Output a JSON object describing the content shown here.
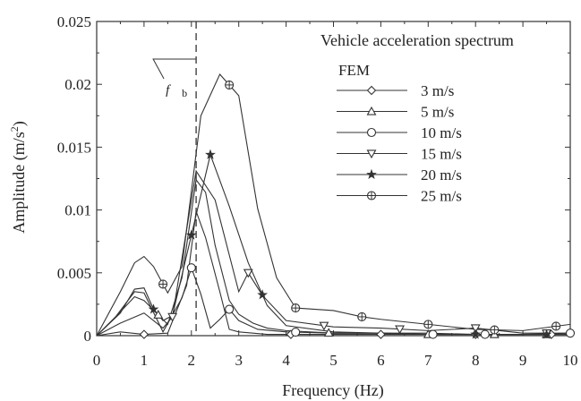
{
  "chart_data": {
    "type": "line",
    "title": "Vehicle acceleration spectrum",
    "xlabel": "Frequency (Hz)",
    "ylabel": "Amplitude (m/s²)",
    "ylabel_base": "Amplitude (m/s",
    "ylabel_sup": "2",
    "ylabel_close": ")",
    "xlim": [
      0,
      10
    ],
    "ylim": [
      0,
      0.025
    ],
    "x_ticks": [
      "0",
      "1",
      "2",
      "3",
      "4",
      "5",
      "6",
      "7",
      "8",
      "9",
      "10"
    ],
    "y_ticks": [
      "0",
      "0.005",
      "0.01",
      "0.015",
      "0.02",
      "0.025"
    ],
    "legend_header": "FEM",
    "legend_position": "top-right",
    "grid": false,
    "annotation": {
      "label": "f",
      "subscript": "b",
      "x": 2.1
    },
    "series": [
      {
        "name": "3 m/s",
        "marker": "diamond",
        "x": [
          0,
          0.5,
          1.0,
          1.5,
          1.9,
          2.1,
          2.3,
          2.6,
          2.8,
          3.0,
          3.3,
          3.6,
          4.0,
          5.0,
          6.0,
          7.0,
          8.0,
          9.0,
          10.0
        ],
        "y": [
          0,
          0.0003,
          0.0001,
          0.0002,
          0.004,
          0.0099,
          0.0078,
          0.0035,
          0.0005,
          0.0003,
          0.0002,
          0.0001,
          0.0001,
          0.0001,
          0.0001,
          0.0001,
          0.0001,
          0.0001,
          0.0001
        ],
        "markers_x": [
          1.0,
          4.1,
          6.0,
          8.0,
          9.6
        ]
      },
      {
        "name": "5 m/s",
        "marker": "triangle-up",
        "x": [
          0,
          0.4,
          0.8,
          1.0,
          1.5,
          1.8,
          2.1,
          2.3,
          2.5,
          2.8,
          3.0,
          3.3,
          3.6,
          4.0,
          5.0,
          6.0,
          7.0,
          8.0,
          9.0,
          10.0
        ],
        "y": [
          0,
          0.0015,
          0.0031,
          0.0028,
          0.0009,
          0.0046,
          0.0124,
          0.0114,
          0.0072,
          0.0028,
          0.0017,
          0.001,
          0.0006,
          0.0004,
          0.0002,
          0.0002,
          0.0001,
          0.0001,
          0.0001,
          0.0001
        ],
        "markers_x": [
          1.3,
          4.9,
          7.0,
          8.4,
          9.5
        ]
      },
      {
        "name": "10 m/s",
        "marker": "circle",
        "x": [
          0,
          0.4,
          0.8,
          1.0,
          1.4,
          1.8,
          2.0,
          2.2,
          2.4,
          2.6,
          2.8,
          3.0,
          3.4,
          4.0,
          5.0,
          6.0,
          7.0,
          8.0,
          9.0,
          10.0
        ],
        "y": [
          0,
          0.0015,
          0.0035,
          0.0034,
          0.0003,
          0.003,
          0.0054,
          0.0033,
          0.0006,
          0.0013,
          0.0021,
          0.0012,
          0.0005,
          0.0003,
          0.0002,
          0.0002,
          0.0001,
          0.0001,
          0.0001,
          0.0002
        ],
        "markers_x": [
          2.0,
          2.8,
          4.2,
          7.1,
          8.2,
          10.0
        ]
      },
      {
        "name": "15 m/s",
        "marker": "triangle-down",
        "x": [
          0,
          0.5,
          1.0,
          1.4,
          1.6,
          2.1,
          2.5,
          3.0,
          3.2,
          3.5,
          4.0,
          5.0,
          6.0,
          7.0,
          8.0,
          9.0,
          10.0
        ],
        "y": [
          0,
          0.001,
          0.0018,
          0.0006,
          0.0015,
          0.0131,
          0.0108,
          0.0035,
          0.005,
          0.0032,
          0.0012,
          0.0007,
          0.0006,
          0.0004,
          0.0006,
          0.0002,
          0.0002
        ],
        "markers_x": [
          1.6,
          3.2,
          4.8,
          6.4,
          8.0,
          9.5
        ]
      },
      {
        "name": "20 m/s",
        "marker": "star",
        "x": [
          0,
          0.5,
          0.8,
          1.0,
          1.2,
          1.4,
          1.6,
          2.0,
          2.4,
          2.8,
          3.2,
          3.6,
          4.0,
          5.0,
          6.0,
          7.0,
          8.0,
          9.0,
          10.0
        ],
        "y": [
          0,
          0.0018,
          0.0037,
          0.0038,
          0.0021,
          0.0012,
          0.0016,
          0.008,
          0.0144,
          0.0103,
          0.0058,
          0.0024,
          0.0008,
          0.0003,
          0.0002,
          0.0002,
          0.0001,
          0.0001,
          0.0001
        ],
        "markers_x": [
          1.2,
          2.0,
          2.4,
          3.5,
          8.0,
          9.5
        ]
      },
      {
        "name": "25 m/s",
        "marker": "cross-circle",
        "x": [
          0,
          0.5,
          0.8,
          1.0,
          1.2,
          1.5,
          1.8,
          2.2,
          2.6,
          3.0,
          3.4,
          3.8,
          4.2,
          5.0,
          5.6,
          6.0,
          7.0,
          8.0,
          9.0,
          10.0
        ],
        "y": [
          0,
          0.0035,
          0.0058,
          0.0063,
          0.0055,
          0.0034,
          0.0055,
          0.0175,
          0.0208,
          0.0191,
          0.0101,
          0.0046,
          0.0022,
          0.002,
          0.0015,
          0.0013,
          0.0009,
          0.0005,
          0.0004,
          0.0009
        ],
        "markers_x": [
          1.4,
          2.8,
          4.2,
          5.6,
          7.0,
          8.4,
          9.7
        ]
      }
    ]
  }
}
